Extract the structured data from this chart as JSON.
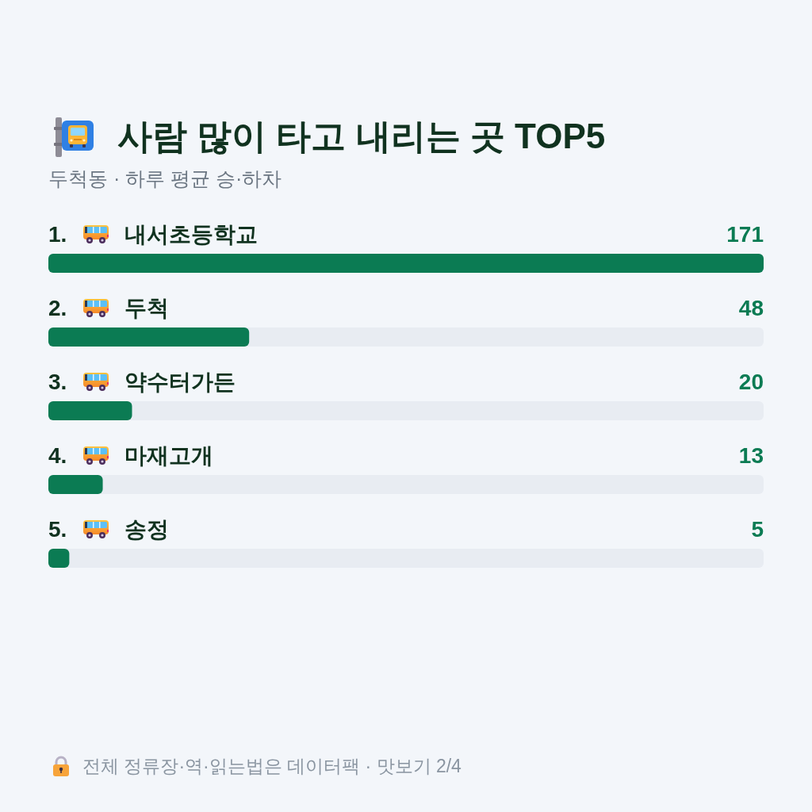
{
  "chart_data": {
    "type": "bar",
    "orientation": "horizontal",
    "title": "사람 많이 타고 내리는 곳 TOP5",
    "subtitle": "두척동 · 하루 평균 승·하차",
    "categories": [
      "1. 내서초등학교",
      "2. 두척",
      "3. 약수터가든",
      "4. 마재고개",
      "5. 송정"
    ],
    "values": [
      171,
      48,
      20,
      13,
      5
    ],
    "color": "#0b7b53",
    "data_labels": true,
    "annotations": [
      "전체 정류장·역·읽는법은 데이터팩 · 맛보기 2/4"
    ]
  }
}
